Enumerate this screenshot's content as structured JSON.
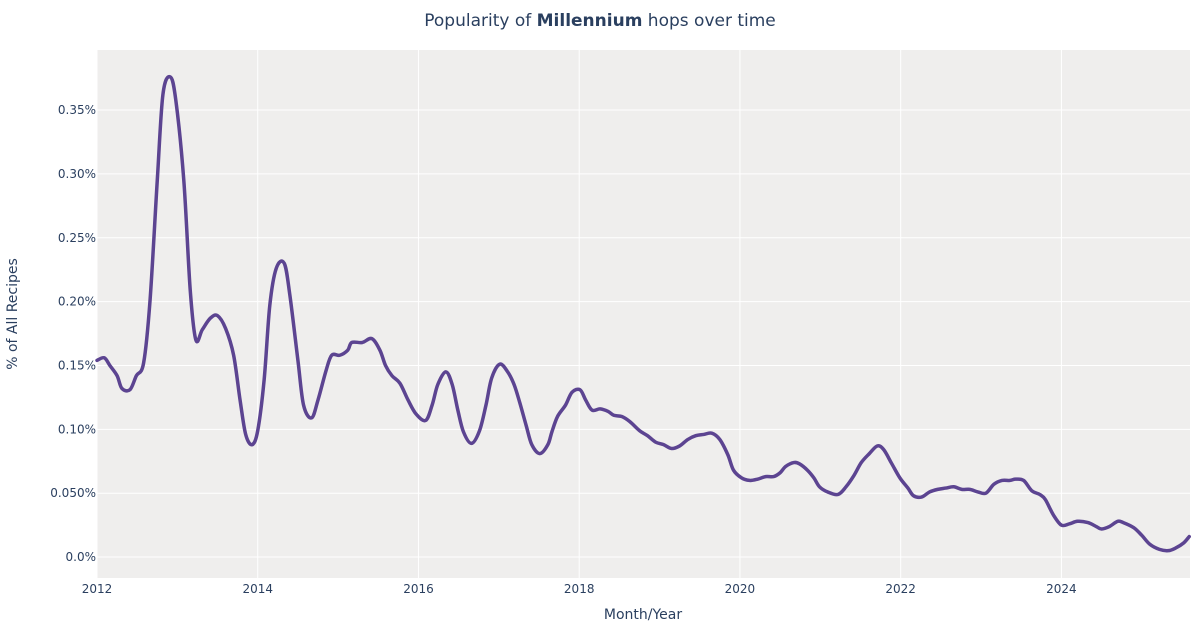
{
  "chart_data": {
    "type": "line",
    "title_prefix": "Popularity of ",
    "title_bold": "Millennium",
    "title_suffix": " hops over time",
    "xlabel": "Month/Year",
    "ylabel": "% of All Recipes",
    "xlim": [
      2012,
      2025.6
    ],
    "ylim": [
      -0.0164,
      0.397
    ],
    "xticks": [
      2012,
      2014,
      2016,
      2018,
      2020,
      2022,
      2024
    ],
    "xtick_labels": [
      "2012",
      "2014",
      "2016",
      "2018",
      "2020",
      "2022",
      "2024"
    ],
    "yticks": [
      0,
      0.05,
      0.1,
      0.15,
      0.2,
      0.25,
      0.3,
      0.35
    ],
    "ytick_labels": [
      "0.0%",
      "0.050%",
      "0.10%",
      "0.15%",
      "0.20%",
      "0.25%",
      "0.30%",
      "0.35%"
    ],
    "grid": true,
    "colors": {
      "line": "#5c4491",
      "plot_bg": "#efeeed",
      "grid": "#ffffff"
    },
    "x": [
      2012.0,
      2012.09,
      2012.16,
      2012.25,
      2012.31,
      2012.41,
      2012.49,
      2012.58,
      2012.66,
      2012.75,
      2012.82,
      2012.91,
      2012.98,
      2013.08,
      2013.16,
      2013.23,
      2013.31,
      2013.41,
      2013.5,
      2013.6,
      2013.7,
      2013.78,
      2013.85,
      2013.93,
      2014.0,
      2014.08,
      2014.15,
      2014.23,
      2014.33,
      2014.4,
      2014.5,
      2014.57,
      2014.67,
      2014.75,
      2014.85,
      2014.92,
      2015.02,
      2015.12,
      2015.17,
      2015.3,
      2015.42,
      2015.52,
      2015.59,
      2015.67,
      2015.77,
      2015.87,
      2015.97,
      2016.09,
      2016.17,
      2016.24,
      2016.34,
      2016.42,
      2016.49,
      2016.56,
      2016.66,
      2016.76,
      2016.84,
      2016.91,
      2017.01,
      2017.11,
      2017.19,
      2017.26,
      2017.34,
      2017.41,
      2017.51,
      2017.61,
      2017.66,
      2017.73,
      2017.83,
      2017.91,
      2018.01,
      2018.08,
      2018.16,
      2018.26,
      2018.36,
      2018.43,
      2018.53,
      2018.63,
      2018.75,
      2018.85,
      2018.95,
      2019.05,
      2019.15,
      2019.25,
      2019.35,
      2019.45,
      2019.55,
      2019.65,
      2019.75,
      2019.85,
      2019.92,
      2020.02,
      2020.12,
      2020.22,
      2020.32,
      2020.42,
      2020.5,
      2020.57,
      2020.67,
      2020.74,
      2020.84,
      2020.92,
      2020.99,
      2021.09,
      2021.22,
      2021.32,
      2021.42,
      2021.51,
      2021.61,
      2021.71,
      2021.79,
      2021.89,
      2021.99,
      2022.09,
      2022.16,
      2022.26,
      2022.36,
      2022.46,
      2022.56,
      2022.66,
      2022.76,
      2022.86,
      2022.96,
      2023.06,
      2023.16,
      2023.26,
      2023.36,
      2023.43,
      2023.53,
      2023.63,
      2023.73,
      2023.8,
      2023.9,
      2024.0,
      2024.1,
      2024.2,
      2024.33,
      2024.43,
      2024.5,
      2024.6,
      2024.7,
      2024.77,
      2024.9,
      2025.0,
      2025.1,
      2025.22,
      2025.33,
      2025.42,
      2025.52,
      2025.59
    ],
    "y": [
      0.154,
      0.156,
      0.15,
      0.142,
      0.132,
      0.131,
      0.142,
      0.152,
      0.201,
      0.295,
      0.362,
      0.376,
      0.358,
      0.295,
      0.209,
      0.17,
      0.178,
      0.187,
      0.189,
      0.179,
      0.158,
      0.123,
      0.096,
      0.088,
      0.099,
      0.139,
      0.197,
      0.226,
      0.23,
      0.205,
      0.154,
      0.119,
      0.109,
      0.123,
      0.146,
      0.158,
      0.158,
      0.162,
      0.168,
      0.168,
      0.171,
      0.162,
      0.15,
      0.142,
      0.136,
      0.123,
      0.112,
      0.107,
      0.119,
      0.135,
      0.145,
      0.135,
      0.115,
      0.098,
      0.089,
      0.099,
      0.119,
      0.14,
      0.151,
      0.145,
      0.135,
      0.121,
      0.103,
      0.088,
      0.081,
      0.088,
      0.098,
      0.11,
      0.119,
      0.129,
      0.131,
      0.123,
      0.115,
      0.116,
      0.114,
      0.111,
      0.11,
      0.106,
      0.099,
      0.095,
      0.09,
      0.088,
      0.085,
      0.087,
      0.092,
      0.095,
      0.096,
      0.097,
      0.092,
      0.08,
      0.068,
      0.062,
      0.06,
      0.061,
      0.063,
      0.063,
      0.066,
      0.071,
      0.074,
      0.073,
      0.068,
      0.062,
      0.055,
      0.051,
      0.049,
      0.055,
      0.064,
      0.074,
      0.081,
      0.087,
      0.084,
      0.073,
      0.062,
      0.054,
      0.048,
      0.047,
      0.051,
      0.053,
      0.054,
      0.055,
      0.053,
      0.053,
      0.051,
      0.05,
      0.057,
      0.06,
      0.06,
      0.061,
      0.06,
      0.052,
      0.049,
      0.045,
      0.033,
      0.025,
      0.026,
      0.028,
      0.027,
      0.024,
      0.022,
      0.024,
      0.028,
      0.027,
      0.023,
      0.017,
      0.01,
      0.006,
      0.005,
      0.007,
      0.011,
      0.016
    ]
  }
}
